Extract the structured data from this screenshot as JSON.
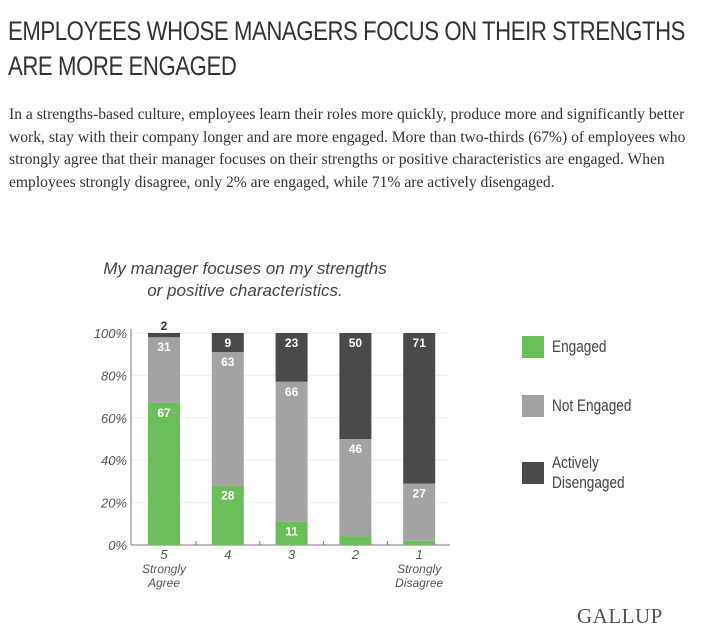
{
  "title": "EMPLOYEES WHOSE MANAGERS FOCUS ON THEIR STRENGTHS ARE MORE ENGAGED",
  "description": "In a strengths-based culture, employees learn their roles more quickly, produce more and significantly better work, stay with their company longer and are more engaged. More than two-thirds (67%) of employees who strongly agree that their manager focuses on their strengths or positive characteristics are engaged. When employees strongly disagree, only 2% are engaged, while 71% are actively disengaged.",
  "logo": "GALLUP",
  "chart_data": {
    "type": "bar",
    "stacked": true,
    "title": "My manager focuses on my strengths or positive characteristics.",
    "categories": [
      "5",
      "4",
      "3",
      "2",
      "1"
    ],
    "category_sublabels": [
      "Strongly Agree",
      "",
      "",
      "",
      "Strongly Disagree"
    ],
    "series": [
      {
        "name": "Engaged",
        "color": "#6abf5b",
        "values": [
          67,
          28,
          11,
          4,
          2
        ],
        "labels_shown": [
          true,
          true,
          true,
          false,
          false
        ]
      },
      {
        "name": "Not Engaged",
        "color": "#a3a3a3",
        "values": [
          31,
          63,
          66,
          46,
          27
        ],
        "labels_shown": [
          true,
          true,
          true,
          true,
          true
        ]
      },
      {
        "name": "Actively Disengaged",
        "color": "#4a4a4c",
        "values": [
          2,
          9,
          23,
          50,
          71
        ],
        "labels_shown": [
          true,
          true,
          true,
          true,
          true
        ]
      }
    ],
    "yticks": [
      "0%",
      "20%",
      "40%",
      "60%",
      "80%",
      "100%"
    ],
    "ylim": [
      0,
      100
    ],
    "legend": "right",
    "grid": true
  }
}
